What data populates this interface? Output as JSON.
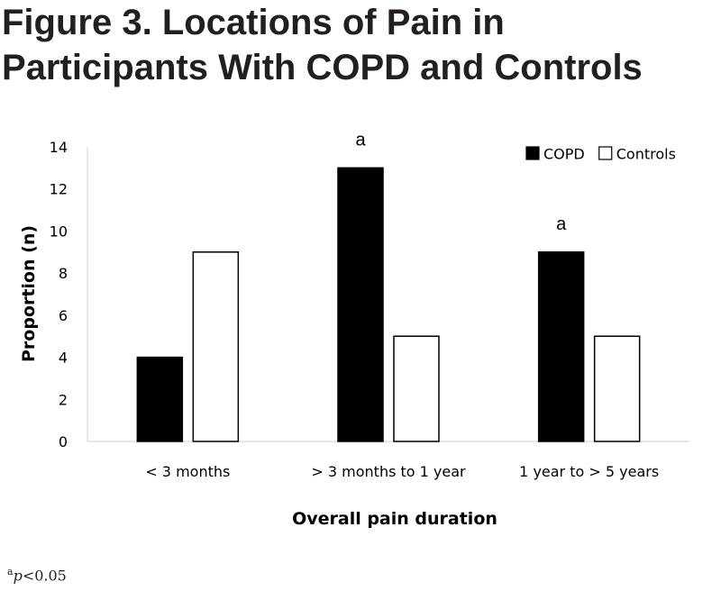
{
  "figure": {
    "title_line1": "Figure 3. Locations of Pain in",
    "title_line2": "Participants With COPD and Controls",
    "footnote_marker": "a",
    "footnote_p": "p",
    "footnote_rest": "<0.05"
  },
  "chart_data": {
    "type": "bar",
    "xlabel": "Overall pain duration",
    "ylabel": "Proportion (n)",
    "ylim": [
      0,
      14
    ],
    "yticks": [
      0,
      2,
      4,
      6,
      8,
      10,
      12,
      14
    ],
    "grid": false,
    "legend_position": "top-right",
    "categories": [
      "< 3 months",
      "> 3 months to 1 year",
      "1 year to > 5  years"
    ],
    "series": [
      {
        "name": "COPD",
        "values": [
          4,
          13,
          9
        ],
        "color": "#000000"
      },
      {
        "name": "Controls",
        "values": [
          9,
          5,
          5
        ],
        "color": "#ffffff"
      }
    ],
    "annotations": [
      {
        "category_index": 1,
        "text": "a"
      },
      {
        "category_index": 2,
        "text": "a"
      }
    ]
  }
}
